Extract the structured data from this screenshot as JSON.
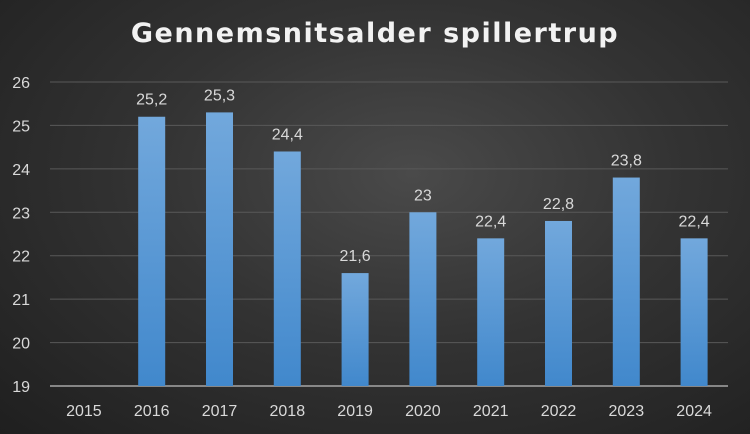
{
  "chart_data": {
    "type": "bar",
    "title": "Gennemsnitsalder spillertrup",
    "categories": [
      "2015",
      "2016",
      "2017",
      "2018",
      "2019",
      "2020",
      "2021",
      "2022",
      "2023",
      "2024"
    ],
    "values": [
      null,
      25.2,
      25.3,
      24.4,
      21.6,
      23,
      22.4,
      22.8,
      23.8,
      22.4
    ],
    "data_labels": [
      "",
      "25,2",
      "25,3",
      "24,4",
      "21,6",
      "23",
      "22,4",
      "22,8",
      "23,8",
      "22,4"
    ],
    "yticks": [
      "19",
      "20",
      "21",
      "22",
      "23",
      "24",
      "25",
      "26"
    ],
    "ylim": [
      19,
      26
    ],
    "xlabel": "",
    "ylabel": "",
    "grid": true,
    "bar_color": "#5b9bd5"
  }
}
